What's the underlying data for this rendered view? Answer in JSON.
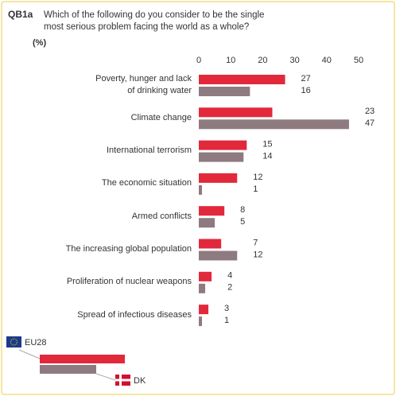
{
  "chart_data": {
    "type": "hbar",
    "code": "QB1a",
    "title": "Which of the following do you consider to be the single most serious problem facing the world as a whole?",
    "unit": "(%)",
    "categories": [
      "Poverty, hunger and lack\nof drinking water",
      "Climate change",
      "International terrorism",
      "The economic situation",
      "Armed conflicts",
      "The increasing global population",
      "Proliferation of nuclear weapons",
      "Spread of infectious diseases"
    ],
    "series": [
      {
        "name": "EU28",
        "color": "#e2283b",
        "values": [
          27,
          23,
          15,
          12,
          8,
          7,
          4,
          3
        ]
      },
      {
        "name": "DK",
        "color": "#8d7b80",
        "values": [
          16,
          47,
          14,
          1,
          5,
          12,
          2,
          1
        ]
      }
    ],
    "xlim": [
      0,
      50
    ],
    "xticks": [
      0,
      10,
      20,
      30,
      40,
      50
    ]
  }
}
